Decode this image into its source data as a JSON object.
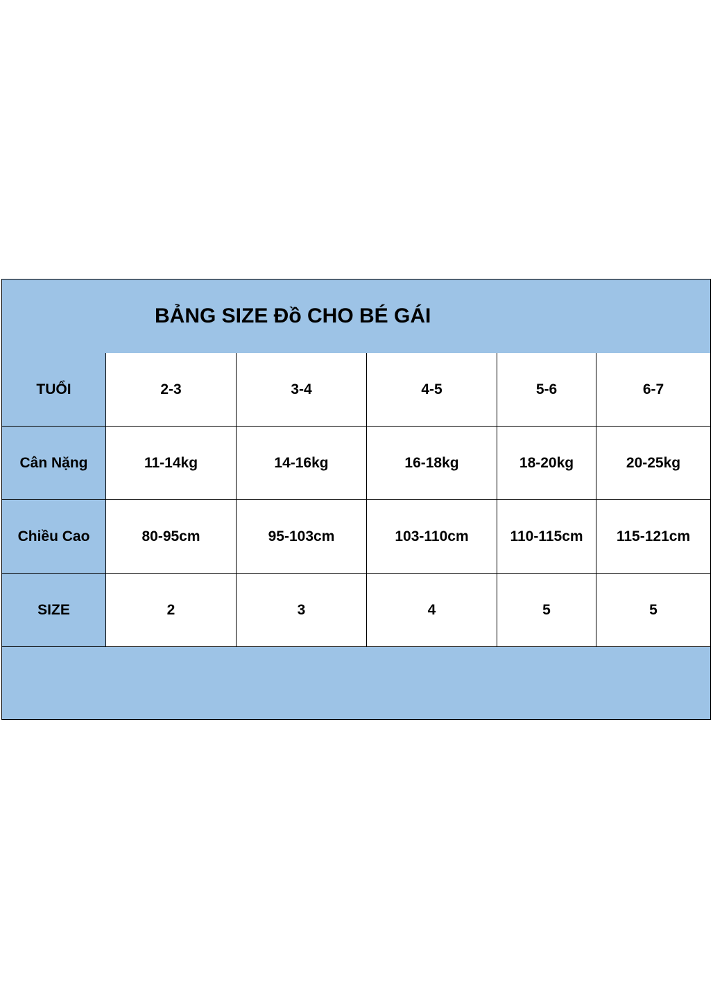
{
  "title": "BẢNG SIZE Đồ CHO BÉ GÁI",
  "colors": {
    "header_fill": "#9dc3e6",
    "cell_fill": "#ffffff",
    "border": "#000000"
  },
  "rows": [
    {
      "label": "TUỔI",
      "values": [
        "2-3",
        "3-4",
        "4-5",
        "5-6",
        "6-7"
      ]
    },
    {
      "label": "Cân Nặng",
      "values": [
        "11-14kg",
        "14-16kg",
        "16-18kg",
        "18-20kg",
        "20-25kg"
      ]
    },
    {
      "label": "Chiều Cao",
      "values": [
        "80-95cm",
        "95-103cm",
        "103-110cm",
        "110-115cm",
        "115-121cm"
      ]
    },
    {
      "label": "SIZE",
      "values": [
        "2",
        "3",
        "4",
        "5",
        "5"
      ]
    }
  ]
}
